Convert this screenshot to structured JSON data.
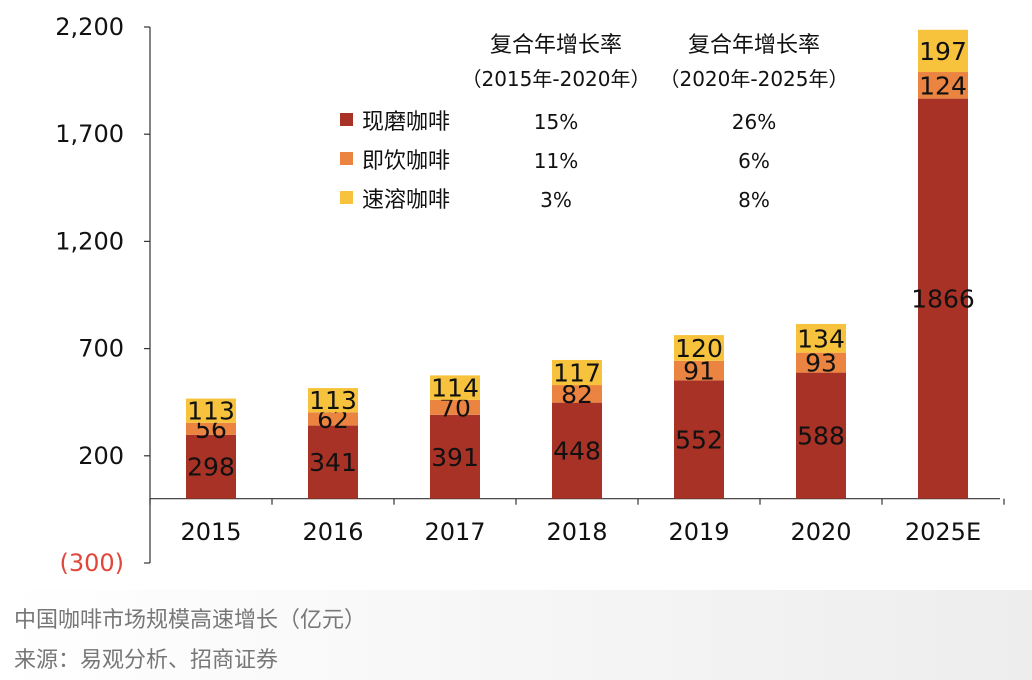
{
  "chart_data": {
    "type": "bar",
    "stacked": true,
    "categories": [
      "2015",
      "2016",
      "2017",
      "2018",
      "2019",
      "2020",
      "2025E"
    ],
    "series": [
      {
        "name": "现磨咖啡",
        "color": "#a93226",
        "values": [
          298,
          341,
          391,
          448,
          552,
          588,
          1866
        ]
      },
      {
        "name": "即饮咖啡",
        "color": "#ea8440",
        "values": [
          56,
          62,
          70,
          82,
          91,
          93,
          124
        ]
      },
      {
        "name": "速溶咖啡",
        "color": "#f8c33c",
        "values": [
          113,
          113,
          114,
          117,
          120,
          134,
          197
        ]
      }
    ],
    "ylim": [
      -300,
      2200
    ],
    "yticks": [
      {
        "value": 2200,
        "label": "2,200"
      },
      {
        "value": 1700,
        "label": "1,700"
      },
      {
        "value": 1200,
        "label": "1,200"
      },
      {
        "value": 700,
        "label": "700"
      },
      {
        "value": 200,
        "label": "200"
      },
      {
        "value": -300,
        "label": "(300)",
        "color": "#e0473a"
      }
    ],
    "grid": false,
    "legend_position": "top-left",
    "growth_table": {
      "headers": [
        {
          "line1": "复合年增长率",
          "line2": "（2015年-2020年）"
        },
        {
          "line1": "复合年增长率",
          "line2": "（2020年-2025年）"
        }
      ],
      "rows": [
        {
          "series": "现磨咖啡",
          "values": [
            "15%",
            "26%"
          ]
        },
        {
          "series": "即饮咖啡",
          "values": [
            "11%",
            "6%"
          ]
        },
        {
          "series": "速溶咖啡",
          "values": [
            "3%",
            "8%"
          ]
        }
      ]
    }
  },
  "caption": {
    "line1": "中国咖啡市场规模高速增长（亿元）",
    "line2": "来源：易观分析、招商证券"
  }
}
